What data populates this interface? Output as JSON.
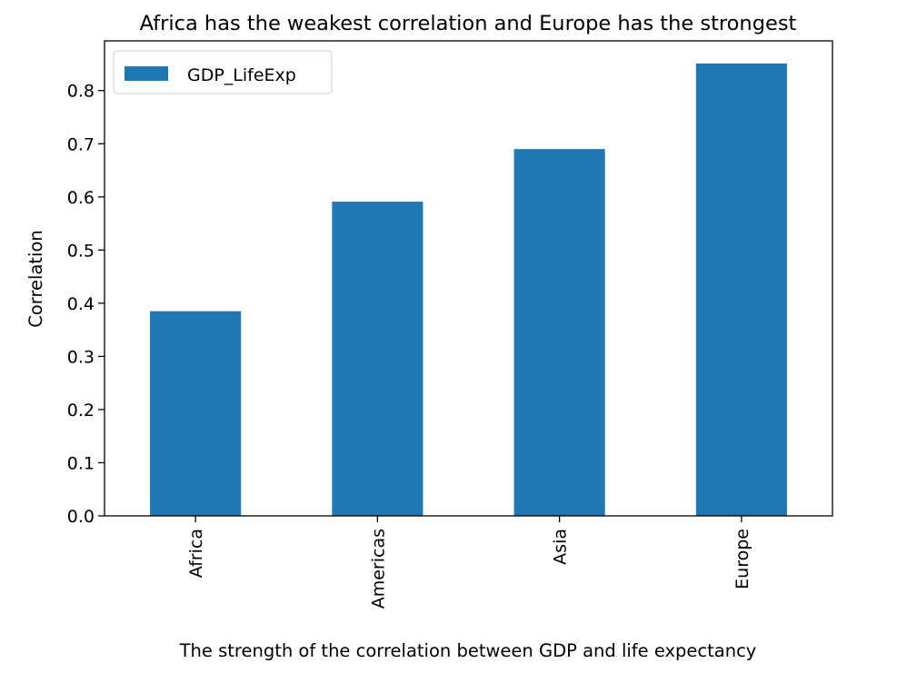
{
  "chart_data": {
    "type": "bar",
    "title": "Africa has the weakest correlation and Europe has the strongest",
    "xlabel": "The strength of the correlation between GDP and life expectancy",
    "ylabel": "Correlation",
    "categories": [
      "Africa",
      "Americas",
      "Asia",
      "Europe"
    ],
    "series": [
      {
        "name": "GDP_LifeExp",
        "values": [
          0.385,
          0.591,
          0.69,
          0.851
        ],
        "color": "#1f77b4"
      }
    ],
    "ylim": [
      0,
      0.8935
    ],
    "yticks": [
      0.0,
      0.1,
      0.2,
      0.3,
      0.4,
      0.5,
      0.6,
      0.7,
      0.8
    ],
    "ytick_labels": [
      "0.0",
      "0.1",
      "0.2",
      "0.3",
      "0.4",
      "0.5",
      "0.6",
      "0.7",
      "0.8"
    ],
    "grid": false,
    "legend_position": "top-left",
    "xtick_rotation": "vertical"
  }
}
